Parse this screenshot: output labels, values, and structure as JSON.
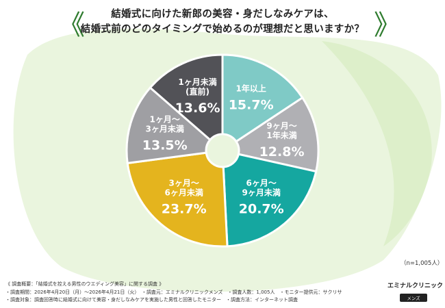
{
  "title_lines": [
    "結婚式に向けた新郎の美容・身だしなみケアは、",
    "結婚式前のどのタイミングで始めるのが理想だと思いますか？"
  ],
  "sample_note": "（n=1,005人）",
  "colors": {
    "background": "#ffffff",
    "bg_blob": "#e4f2d6",
    "title_bracket": "#2f7c2f"
  },
  "chart_data": {
    "type": "pie",
    "donut": true,
    "title": "結婚式に向けた新郎の美容・身だしなみケアは、結婚式前のどのタイミングで始めるのが理想だと思いますか？",
    "slices": [
      {
        "label_lines": [
          "1年以上"
        ],
        "value": 15.7,
        "value_label": "15.7%",
        "color": "#7fcac6"
      },
      {
        "label_lines": [
          "9ヶ月〜",
          "1年未満"
        ],
        "value": 12.8,
        "value_label": "12.8%",
        "color": "#b0b0b4"
      },
      {
        "label_lines": [
          "6ヶ月〜",
          "9ヶ月未満"
        ],
        "value": 20.7,
        "value_label": "20.7%",
        "color": "#15a7a0"
      },
      {
        "label_lines": [
          "3ヶ月〜",
          "6ヶ月未満"
        ],
        "value": 23.7,
        "value_label": "23.7%",
        "color": "#e4b41e"
      },
      {
        "label_lines": [
          "1ヶ月〜",
          "3ヶ月未満"
        ],
        "value": 13.5,
        "value_label": "13.5%",
        "color": "#9f9fa3"
      },
      {
        "label_lines": [
          "1ヶ月未満",
          "(直前)"
        ],
        "value": 13.6,
        "value_label": "13.6%",
        "color": "#525257"
      }
    ]
  },
  "footer": {
    "lines": [
      "《 調査概要：「結婚式を控える男性のウエディング美容」に関する調査 》",
      "・調査期間：2026年4月20日（月）〜2026年4月21日（火）　・調査元：エミナルクリニックメンズ　・調査人数：1,005人　・モニター提供元：サクリサ",
      "・調査対象：調査回答時に結婚式に向けて美容・身だしなみケアを実施した男性と回答したモニター　・調査方法：インターネット調査"
    ]
  },
  "logo": {
    "name": "エミナルクリニック",
    "sub": "メンズ"
  }
}
